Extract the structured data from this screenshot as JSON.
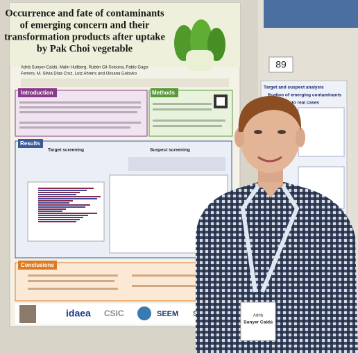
{
  "poster": {
    "title_lines": [
      "Occurrence and fate of contaminants",
      "of emerging concern and their",
      "transformation products after uptake",
      "by Pak Choi vegetable"
    ],
    "authors_lines": [
      "Adrià Sunyer-Caldú, Malin Hultberg, Rubén Gil-Solsona, Pablo Gago-",
      "Ferrero, M. Silvia Díaz-Cruz, Lutz Ahrens and Oksana Golovko"
    ],
    "introduction": "Introduction",
    "methods": "Methods",
    "results": "Results",
    "target_screening": "Target screening",
    "suspect_screening": "Suspect screening",
    "conclusions": "Conclusions",
    "logos": [
      "idaea",
      "CSIC",
      "SEEM",
      "SLU"
    ]
  },
  "board_number": "89",
  "right_poster": {
    "lines": [
      "Target and suspect analysis",
      "fication of emerging contaminants",
      "lication to real cases"
    ]
  },
  "badge": {
    "lines": [
      "Adrià",
      "Sunyer Caldú"
    ]
  }
}
